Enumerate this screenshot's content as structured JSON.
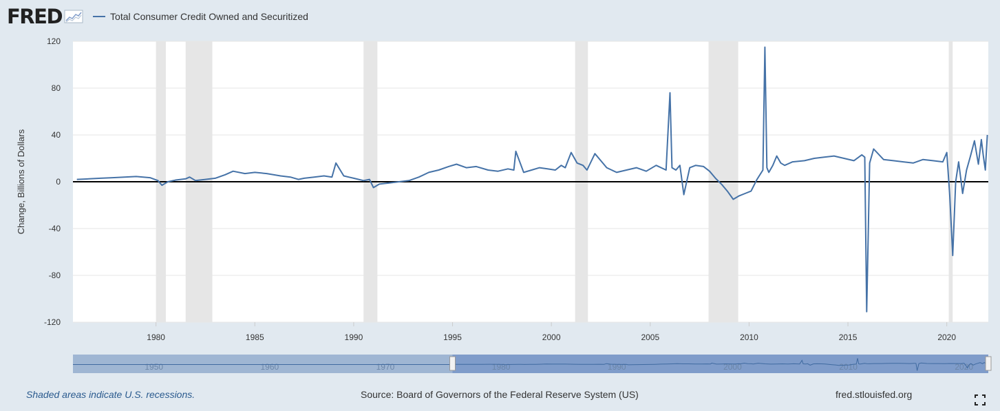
{
  "header": {
    "logo_text": "FRED",
    "logo_icon": "chart-line-icon",
    "legend_label": "Total Consumer Credit Owned and Securitized"
  },
  "colors": {
    "series": "#4572a7",
    "recession": "#e6e6e6",
    "background": "#e1e9f0",
    "zero_line": "#000000",
    "navigator_fill": "#9fb6d3",
    "navigator_selected": "#7f9cca"
  },
  "chart_data": {
    "type": "line",
    "title": "",
    "series": [
      {
        "name": "Total Consumer Credit Owned and Securitized",
        "x": [
          1976,
          1976.6,
          1977.2,
          1977.8,
          1978.4,
          1979,
          1979.7,
          1980.1,
          1980.3,
          1980.6,
          1981,
          1981.5,
          1981.7,
          1982,
          1982.5,
          1983,
          1983.5,
          1983.9,
          1984.5,
          1985,
          1985.6,
          1986.3,
          1986.8,
          1987.2,
          1987.5,
          1988,
          1988.5,
          1988.9,
          1989.1,
          1989.5,
          1990,
          1990.5,
          1990.8,
          1991,
          1991.3,
          1991.8,
          1992.3,
          1992.8,
          1993.3,
          1993.8,
          1994.3,
          1994.8,
          1995.2,
          1995.7,
          1996.2,
          1996.8,
          1997.3,
          1997.8,
          1998.1,
          1998.2,
          1998.6,
          1999,
          1999.4,
          1999.8,
          2000.2,
          2000.5,
          2000.7,
          2001,
          2001.3,
          2001.6,
          2001.8,
          2002.2,
          2002.8,
          2003.3,
          2003.8,
          2004.3,
          2004.8,
          2005.3,
          2005.8,
          2006,
          2006.1,
          2006.3,
          2006.5,
          2006.7,
          2007,
          2007.3,
          2007.7,
          2008,
          2008.3,
          2008.6,
          2008.9,
          2009.2,
          2009.5,
          2009.8,
          2010.1,
          2010.4,
          2010.7,
          2010.8,
          2010.9,
          2011,
          2011.2,
          2011.4,
          2011.6,
          2011.8,
          2012.2,
          2012.8,
          2013.3,
          2013.8,
          2014.3,
          2014.8,
          2015.3,
          2015.7,
          2015.85,
          2015.95,
          2016.1,
          2016.3,
          2016.8,
          2017.3,
          2017.8,
          2018.3,
          2018.8,
          2019.3,
          2019.8,
          2020,
          2020.15,
          2020.3,
          2020.45,
          2020.6,
          2020.8,
          2021,
          2021.2,
          2021.4,
          2021.6,
          2021.75,
          2021.85,
          2021.95,
          2022.05
        ],
        "y": [
          2,
          2.5,
          3,
          3.5,
          4,
          4.5,
          3.5,
          1,
          -3,
          0,
          1.5,
          2.5,
          4,
          1,
          2,
          3,
          6,
          9,
          7,
          8,
          7,
          5,
          4,
          2,
          3,
          4,
          5,
          4,
          16,
          5,
          3,
          1,
          2,
          -5,
          -2,
          -1,
          0,
          1,
          4,
          8,
          10,
          13,
          15,
          12,
          13,
          10,
          9,
          11,
          10,
          26,
          8,
          10,
          12,
          11,
          10,
          14,
          12,
          25,
          16,
          14,
          10,
          24,
          12,
          8,
          10,
          12,
          9,
          14,
          10,
          76,
          12,
          10,
          14,
          -11,
          12,
          14,
          13,
          9,
          3,
          -2,
          -8,
          -15,
          -12,
          -10,
          -8,
          2,
          10,
          115,
          12,
          8,
          14,
          22,
          16,
          14,
          17,
          18,
          20,
          21,
          22,
          20,
          18,
          23,
          21,
          -111,
          16,
          28,
          19,
          18,
          17,
          16,
          19,
          18,
          17,
          25,
          -12,
          -63,
          0,
          17,
          -10,
          10,
          22,
          35,
          15,
          36,
          22,
          10,
          40
        ],
        "note": ""
      }
    ],
    "xlabel": "",
    "ylabel": "Change, Billions of Dollars",
    "xlim": [
      1975.8,
      2022.1
    ],
    "ylim": [
      -120,
      120
    ],
    "x_ticks": [
      1980,
      1985,
      1990,
      1995,
      2000,
      2005,
      2010,
      2015,
      2020
    ],
    "x_tick_labels": [
      "1980",
      "1985",
      "1990",
      "1995",
      "2000",
      "2005",
      "2010",
      "2015",
      "2020"
    ],
    "y_ticks": [
      120,
      80,
      40,
      0,
      -40,
      -80,
      -120
    ],
    "y_tick_labels": [
      "120",
      "80",
      "40",
      "0",
      "-40",
      "-80",
      "-120"
    ],
    "recessions": [
      [
        1980.0,
        1980.5
      ],
      [
        1981.5,
        1982.85
      ],
      [
        1990.5,
        1991.2
      ],
      [
        2001.2,
        2001.85
      ],
      [
        2007.95,
        2009.45
      ],
      [
        2020.1,
        2020.3
      ]
    ],
    "grid": true,
    "legend": "top-left",
    "navigator": {
      "range": [
        1943,
        2022.1
      ],
      "selected": [
        1975.8,
        2022.1
      ],
      "labels": [
        {
          "year": 1950,
          "text": "1950"
        },
        {
          "year": 1960,
          "text": "1960"
        },
        {
          "year": 1970,
          "text": "1970"
        },
        {
          "year": 1980,
          "text": "1980"
        },
        {
          "year": 1990,
          "text": "1990"
        },
        {
          "year": 2000,
          "text": "2000"
        },
        {
          "year": 2010,
          "text": "2010"
        },
        {
          "year": 2020,
          "text": "2020"
        }
      ]
    }
  },
  "footer": {
    "recession_note": "Shaded areas indicate U.S. recessions.",
    "source": "Source: Board of Governors of the Federal Reserve System (US)",
    "site": "fred.stlouisfed.org",
    "fullscreen_icon": "fullscreen-icon"
  }
}
